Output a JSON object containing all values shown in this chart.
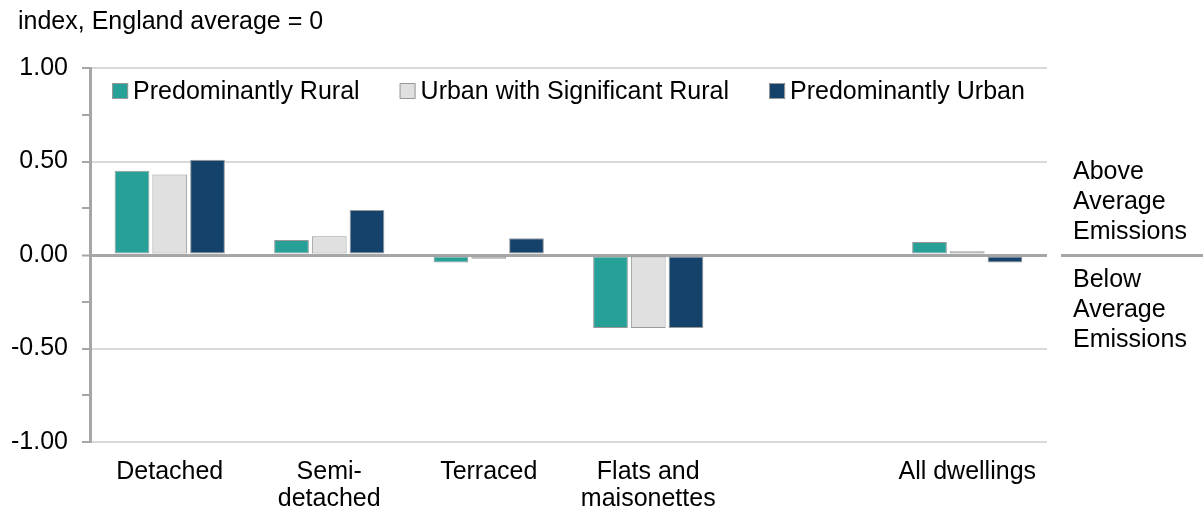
{
  "chart_data": {
    "type": "bar",
    "ylabel": "index, England average = 0",
    "categories": [
      "Detached",
      "Semi-detached",
      "Terraced",
      "Flats and maisonettes",
      null,
      "All dwellings"
    ],
    "series": [
      {
        "name": "Predominantly Rural",
        "color": "#27a197",
        "values": [
          0.45,
          0.08,
          -0.04,
          -0.39,
          null,
          0.07
        ]
      },
      {
        "name": "Urban with Significant Rural",
        "color": "#e0e0e0",
        "values": [
          0.43,
          0.1,
          -0.02,
          -0.39,
          null,
          0.02
        ]
      },
      {
        "name": "Predominantly Urban",
        "color": "#15426a",
        "values": [
          0.51,
          0.24,
          0.09,
          -0.39,
          null,
          -0.04
        ]
      }
    ],
    "ylim": [
      -1,
      1
    ],
    "yticks": [
      {
        "value": -1,
        "label": "-1.00"
      },
      {
        "value": -0.75,
        "label": null
      },
      {
        "value": -0.5,
        "label": "-0.50"
      },
      {
        "value": -0.25,
        "label": null
      },
      {
        "value": 0,
        "label": "0.00"
      },
      {
        "value": 0.25,
        "label": null
      },
      {
        "value": 0.5,
        "label": "0.50"
      },
      {
        "value": 0.75,
        "label": null
      },
      {
        "value": 1,
        "label": "1.00"
      }
    ],
    "grid": "y",
    "legend": "top",
    "annotations": [
      "Above Average Emissions",
      "Below Average Emissions"
    ]
  }
}
